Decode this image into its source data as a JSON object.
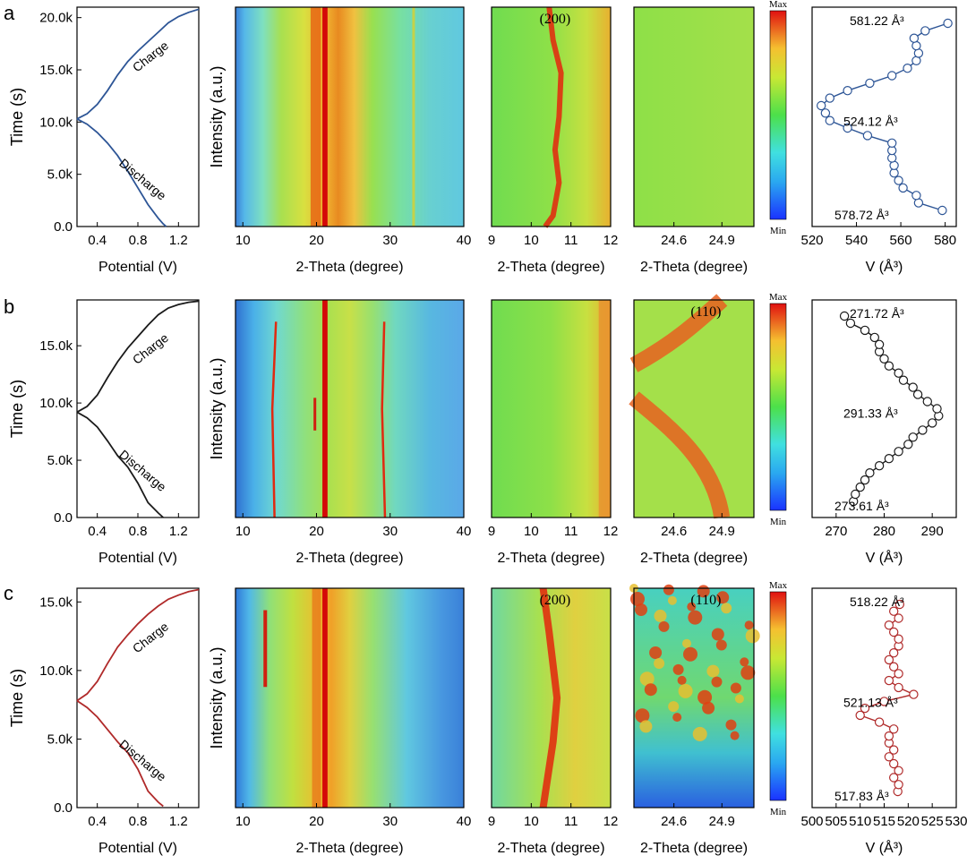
{
  "colors": {
    "a": "#2d5596",
    "b": "#1a1a1a",
    "c": "#b02a2a"
  },
  "labels": {
    "time_axis": "Time (s)",
    "potential_axis": "Potential (V)",
    "intensity_axis": "Intensity (a.u.)",
    "two_theta_axis": "2-Theta (degree)",
    "volume_axis": "V (Å³)",
    "colorbar_max": "Max",
    "colorbar_min": "Min",
    "charge": "Charge",
    "discharge": "Discharge"
  },
  "chart_data": [
    {
      "panel": "a",
      "type": "line",
      "title": "",
      "xlabel": "Potential (V)",
      "ylabel": "Time (s)",
      "xlim": [
        0.2,
        1.4
      ],
      "ylim": [
        0,
        21000
      ],
      "xticks": [
        0.4,
        0.8,
        1.2
      ],
      "xtick_labels": [
        "0.4",
        "0.8",
        "1.2"
      ],
      "yticks": [
        0,
        5000,
        10000,
        15000,
        20000
      ],
      "ytick_labels": [
        "0.0",
        "5.0k",
        "10.0k",
        "15.0k",
        "20.0k"
      ],
      "annotations": [
        "Charge",
        "Discharge"
      ],
      "discharge": {
        "x": [
          0.2,
          0.3,
          0.4,
          0.5,
          0.6,
          0.7,
          0.8,
          0.9,
          1.0,
          1.05,
          1.08
        ],
        "y": [
          10300,
          9800,
          9000,
          8000,
          6800,
          5300,
          3700,
          2100,
          800,
          250,
          0
        ]
      },
      "charge": {
        "x": [
          0.2,
          0.3,
          0.4,
          0.5,
          0.6,
          0.7,
          0.8,
          0.9,
          1.0,
          1.1,
          1.2,
          1.3,
          1.4
        ],
        "y": [
          10300,
          10800,
          11700,
          13000,
          14500,
          15800,
          16800,
          17700,
          18600,
          19500,
          20100,
          20500,
          20800
        ]
      },
      "heatmaps": [
        {
          "range": [
            9,
            40
          ],
          "xticks": [
            10,
            20,
            30,
            40
          ],
          "xtick_labels": [
            "10",
            "20",
            "30",
            "40"
          ],
          "label": ""
        },
        {
          "range": [
            9,
            12
          ],
          "xticks": [
            9,
            10,
            11,
            12
          ],
          "xtick_labels": [
            "9",
            "10",
            "11",
            "12"
          ],
          "label": "(200)"
        },
        {
          "range": [
            24.35,
            25.1
          ],
          "xticks": [
            24.6,
            24.9
          ],
          "xtick_labels": [
            "24.6",
            "24.9"
          ],
          "label": ""
        }
      ],
      "volume": {
        "xlim": [
          520,
          585
        ],
        "xticks": [
          520,
          540,
          560,
          580
        ],
        "xtick_labels": [
          "520",
          "540",
          "560",
          "580"
        ],
        "values": [
          578.72,
          568,
          567,
          561,
          559,
          557,
          557,
          556,
          556,
          556,
          545,
          536,
          528,
          526,
          524.12,
          528,
          536,
          546,
          556,
          563,
          567,
          568,
          567,
          566,
          571,
          581.22
        ],
        "annotations": [
          "581.22 Å³",
          "524.12 Å³",
          "578.72 Å³"
        ]
      }
    },
    {
      "panel": "b",
      "type": "line",
      "title": "",
      "xlabel": "Potential (V)",
      "ylabel": "Time (s)",
      "xlim": [
        0.2,
        1.4
      ],
      "ylim": [
        0,
        19000
      ],
      "xticks": [
        0.4,
        0.8,
        1.2
      ],
      "xtick_labels": [
        "0.4",
        "0.8",
        "1.2"
      ],
      "yticks": [
        0,
        5000,
        10000,
        15000
      ],
      "ytick_labels": [
        "0.0",
        "5.0k",
        "10.0k",
        "15.0k"
      ],
      "annotations": [
        "Charge",
        "Discharge"
      ],
      "discharge": {
        "x": [
          0.2,
          0.3,
          0.4,
          0.5,
          0.6,
          0.7,
          0.8,
          0.9,
          1.0,
          1.05
        ],
        "y": [
          9200,
          8700,
          7900,
          6700,
          5400,
          4400,
          3000,
          1300,
          400,
          0
        ]
      },
      "charge": {
        "x": [
          0.2,
          0.3,
          0.4,
          0.5,
          0.6,
          0.7,
          0.8,
          0.9,
          1.0,
          1.1,
          1.2,
          1.3,
          1.4
        ],
        "y": [
          9200,
          9700,
          10700,
          12200,
          13600,
          14800,
          15800,
          16800,
          17700,
          18300,
          18600,
          18800,
          18900
        ]
      },
      "heatmaps": [
        {
          "range": [
            9,
            40
          ],
          "xticks": [
            10,
            20,
            30,
            40
          ],
          "xtick_labels": [
            "10",
            "20",
            "30",
            "40"
          ],
          "label": ""
        },
        {
          "range": [
            9,
            12
          ],
          "xticks": [
            9,
            10,
            11,
            12
          ],
          "xtick_labels": [
            "9",
            "10",
            "11",
            "12"
          ],
          "label": ""
        },
        {
          "range": [
            24.35,
            25.1
          ],
          "xticks": [
            24.6,
            24.9
          ],
          "xtick_labels": [
            "24.6",
            "24.9"
          ],
          "label": "(110)"
        }
      ],
      "volume": {
        "xlim": [
          265,
          295
        ],
        "xticks": [
          270,
          280,
          290
        ],
        "xtick_labels": [
          "270",
          "280",
          "290"
        ],
        "values": [
          273.61,
          274,
          275,
          276,
          277,
          279,
          281,
          283,
          285,
          286,
          288,
          290,
          291.33,
          291,
          289,
          287,
          286,
          284,
          283,
          281,
          280,
          279,
          279,
          278,
          276,
          273,
          271.72
        ],
        "annotations": [
          "271.72 Å³",
          "291.33 Å³",
          "273.61 Å³"
        ]
      }
    },
    {
      "panel": "c",
      "type": "line",
      "title": "",
      "xlabel": "Potential (V)",
      "ylabel": "Time (s)",
      "xlim": [
        0.2,
        1.4
      ],
      "ylim": [
        0,
        16000
      ],
      "xticks": [
        0.4,
        0.8,
        1.2
      ],
      "xtick_labels": [
        "0.4",
        "0.8",
        "1.2"
      ],
      "yticks": [
        0,
        5000,
        10000,
        15000
      ],
      "ytick_labels": [
        "0.0",
        "5.0k",
        "10.0k",
        "15.0k"
      ],
      "annotations": [
        "Charge",
        "Discharge"
      ],
      "discharge": {
        "x": [
          0.2,
          0.3,
          0.4,
          0.5,
          0.6,
          0.7,
          0.8,
          0.9,
          1.0,
          1.05
        ],
        "y": [
          7800,
          7300,
          6600,
          5700,
          4800,
          4000,
          2800,
          1200,
          400,
          100
        ]
      },
      "charge": {
        "x": [
          0.2,
          0.3,
          0.4,
          0.5,
          0.6,
          0.7,
          0.8,
          0.9,
          1.0,
          1.1,
          1.2,
          1.3,
          1.4
        ],
        "y": [
          7800,
          8300,
          9200,
          10500,
          11700,
          12600,
          13400,
          14100,
          14700,
          15200,
          15500,
          15750,
          15900
        ]
      },
      "heatmaps": [
        {
          "range": [
            9,
            40
          ],
          "xticks": [
            10,
            20,
            30,
            40
          ],
          "xtick_labels": [
            "10",
            "20",
            "30",
            "40"
          ],
          "label": ""
        },
        {
          "range": [
            9,
            12
          ],
          "xticks": [
            9,
            10,
            11,
            12
          ],
          "xtick_labels": [
            "9",
            "10",
            "11",
            "12"
          ],
          "label": "(200)"
        },
        {
          "range": [
            24.35,
            25.1
          ],
          "xticks": [
            24.6,
            24.9
          ],
          "xtick_labels": [
            "24.6",
            "24.9"
          ],
          "label": "(110)"
        }
      ],
      "volume": {
        "xlim": [
          500,
          530
        ],
        "xticks": [
          500,
          505,
          510,
          515,
          520,
          525,
          530
        ],
        "xtick_labels": [
          "500",
          "505",
          "510",
          "515",
          "520",
          "525",
          "530"
        ],
        "values": [
          517.83,
          518,
          517,
          518,
          517,
          516,
          517,
          516,
          516,
          517,
          514,
          510,
          511,
          515,
          521.13,
          518,
          516,
          518,
          517,
          516,
          517,
          518,
          518,
          517,
          516,
          518,
          517,
          518.22
        ],
        "annotations": [
          "518.22 Å³",
          "521.13 Å³",
          "517.83 Å³"
        ]
      }
    }
  ]
}
